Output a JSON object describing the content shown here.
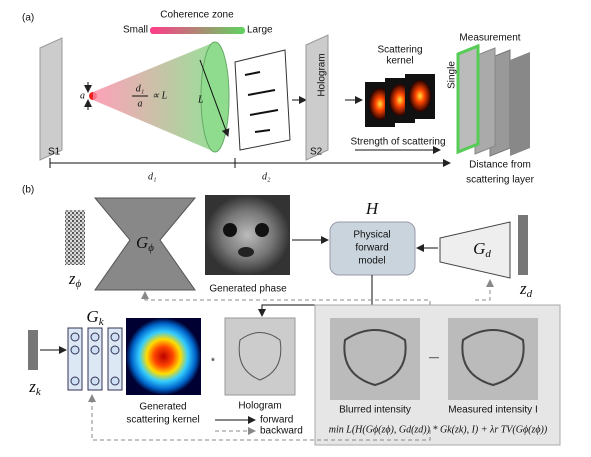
{
  "panel_a": {
    "label": "(a)",
    "coherence": {
      "title": "Coherence zone",
      "small": "Small",
      "large": "Large"
    },
    "aperture": "a",
    "relation": {
      "numerator": "d₁",
      "denominator": "a",
      "rest": "∝ L"
    },
    "cone_size": "L",
    "hologram": "Hologram",
    "kernel": {
      "line1": "Scattering",
      "line2": "kernel"
    },
    "strength": "Strength of scattering",
    "measurement": {
      "line1": "Single",
      "line2": "Measurement"
    },
    "s1": "S1",
    "s2": "S2",
    "distance": {
      "line1": "Distance from",
      "line2": "scattering layer"
    },
    "d1": "d₁",
    "d2": "d₂"
  },
  "panel_b": {
    "label": "(b)",
    "g_phi": {
      "base": "G",
      "sub": "ϕ"
    },
    "z_phi": {
      "base": "z",
      "sub": "ϕ"
    },
    "generated_phase": "Generated phase",
    "h": "H",
    "forward_model": {
      "line1": "Physical",
      "line2": "forward",
      "line3": "model"
    },
    "g_d": {
      "base": "G",
      "sub": "d"
    },
    "z_d": {
      "base": "z",
      "sub": "d"
    },
    "g_k": {
      "base": "G",
      "sub": "k"
    },
    "z_k": {
      "base": "z",
      "sub": "k"
    },
    "kernel": {
      "line1": "Generated",
      "line2": "scattering kernel"
    },
    "convolve": "*",
    "hologram": "Hologram",
    "blurred": "Blurred intensity",
    "minus": "—",
    "measured": "Measured intensity I",
    "legend": {
      "forward": "forward",
      "backward": "backward"
    },
    "loss": "min L(H(Gϕ(zϕ), Gd(zd)) * Gk(zk), I) + λr TV(Gϕ(zϕ))"
  }
}
